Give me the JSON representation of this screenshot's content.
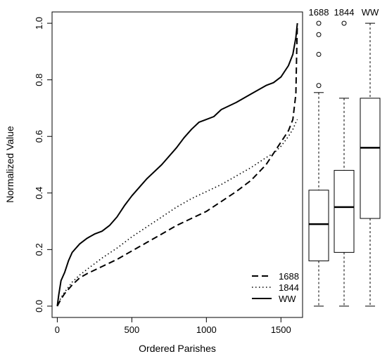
{
  "chart_data": [
    {
      "type": "line",
      "xlabel": "Ordered Parishes",
      "ylabel": "Normalized Value",
      "xlim": [
        -35,
        1645
      ],
      "ylim": [
        -0.04,
        1.04
      ],
      "xticks": [
        0,
        500,
        1000,
        1500
      ],
      "yticks": [
        0.0,
        0.2,
        0.4,
        0.6,
        0.8,
        1.0
      ],
      "xtick_labels": [
        "0",
        "500",
        "1000",
        "1500"
      ],
      "ytick_labels": [
        "0.0",
        "0.2",
        "0.4",
        "0.6",
        "0.8",
        "1.0"
      ],
      "grid": false,
      "legend_position": "bottom-right",
      "series": [
        {
          "name": "1688",
          "line_style": "dashed",
          "x": [
            0,
            25,
            50,
            100,
            150,
            200,
            300,
            400,
            500,
            600,
            700,
            800,
            900,
            1000,
            1100,
            1200,
            1300,
            1400,
            1450,
            1500,
            1550,
            1580,
            1600,
            1605,
            1610
          ],
          "y": [
            0.0,
            0.025,
            0.045,
            0.075,
            0.1,
            0.115,
            0.14,
            0.165,
            0.195,
            0.225,
            0.255,
            0.285,
            0.31,
            0.335,
            0.37,
            0.405,
            0.445,
            0.5,
            0.54,
            0.58,
            0.62,
            0.66,
            0.75,
            0.88,
            1.0
          ]
        },
        {
          "name": "1844",
          "line_style": "dotted",
          "x": [
            0,
            25,
            50,
            100,
            150,
            200,
            300,
            400,
            500,
            600,
            700,
            800,
            900,
            1000,
            1100,
            1200,
            1300,
            1400,
            1450,
            1500,
            1550,
            1580,
            1600,
            1610
          ],
          "y": [
            0.0,
            0.03,
            0.05,
            0.085,
            0.11,
            0.13,
            0.17,
            0.205,
            0.245,
            0.28,
            0.315,
            0.35,
            0.38,
            0.405,
            0.43,
            0.46,
            0.49,
            0.525,
            0.54,
            0.565,
            0.6,
            0.625,
            0.65,
            0.66
          ]
        },
        {
          "name": "WW",
          "line_style": "solid",
          "x": [
            0,
            10,
            25,
            50,
            75,
            100,
            150,
            200,
            250,
            300,
            350,
            400,
            450,
            500,
            550,
            600,
            700,
            800,
            850,
            900,
            950,
            1000,
            1050,
            1100,
            1200,
            1300,
            1400,
            1450,
            1500,
            1550,
            1580,
            1600,
            1610
          ],
          "y": [
            0.0,
            0.04,
            0.09,
            0.12,
            0.16,
            0.19,
            0.22,
            0.24,
            0.255,
            0.265,
            0.285,
            0.315,
            0.355,
            0.39,
            0.42,
            0.45,
            0.5,
            0.56,
            0.595,
            0.625,
            0.65,
            0.66,
            0.67,
            0.695,
            0.72,
            0.75,
            0.78,
            0.79,
            0.81,
            0.85,
            0.89,
            0.95,
            1.0
          ]
        }
      ]
    },
    {
      "type": "boxplot",
      "ylim": [
        -0.04,
        1.04
      ],
      "grid": false,
      "series": [
        {
          "name": "1688",
          "whisker_low": 0.0,
          "q1": 0.16,
          "median": 0.29,
          "q3": 0.41,
          "whisker_high": 0.755,
          "outliers": [
            0.78,
            0.89,
            0.96,
            1.0
          ]
        },
        {
          "name": "1844",
          "whisker_low": 0.0,
          "q1": 0.19,
          "median": 0.35,
          "q3": 0.48,
          "whisker_high": 0.735,
          "outliers": [
            1.0
          ]
        },
        {
          "name": "WW",
          "whisker_low": 0.0,
          "q1": 0.31,
          "median": 0.56,
          "q3": 0.735,
          "whisker_high": 1.0,
          "outliers": []
        }
      ]
    }
  ]
}
